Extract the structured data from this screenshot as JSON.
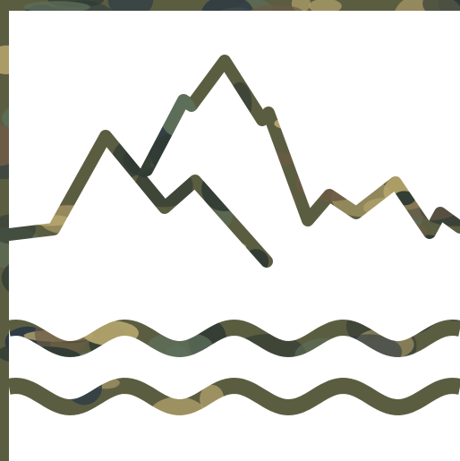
{
  "image": {
    "icon": "mountains-and-waves-icon",
    "palette": {
      "background": "#ffffff",
      "camo_dark": "#2f3a33",
      "camo_olive": "#5b5d41",
      "camo_sand": "#b5a46c",
      "camo_green": "#5d6f5a",
      "camo_brown": "#6b5a45",
      "camo_blue": "#2d3a45"
    }
  }
}
